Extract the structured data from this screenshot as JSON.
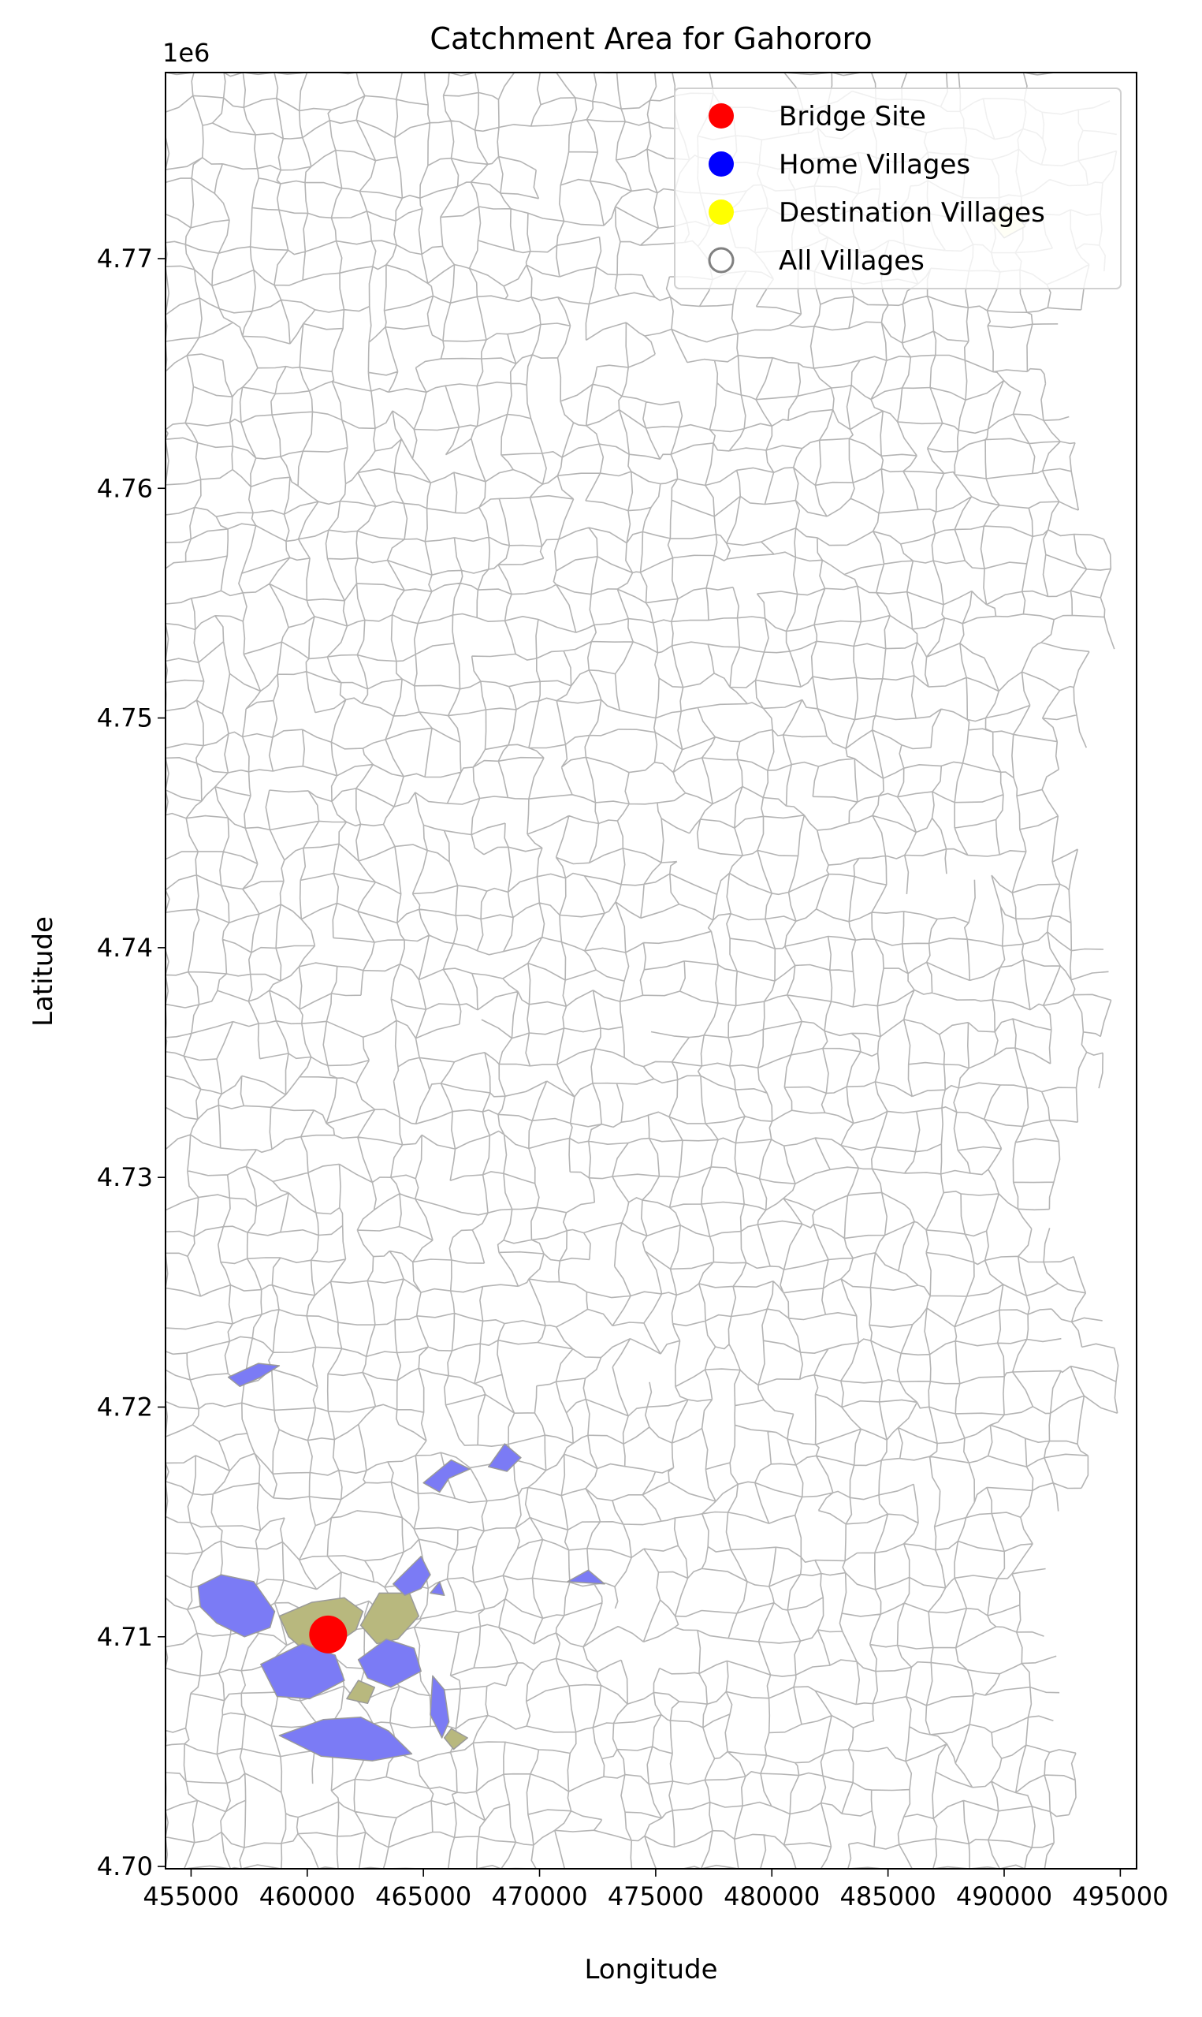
{
  "chart_data": {
    "type": "map",
    "title": "Catchment Area for Gahororo",
    "xlabel": "Longitude",
    "ylabel": "Latitude",
    "y_offset_label": "1e6",
    "xlim": [
      453900,
      495700
    ],
    "ylim": [
      4699900,
      4778100
    ],
    "x_ticks": [
      {
        "value": 455000,
        "label": "455000"
      },
      {
        "value": 460000,
        "label": "460000"
      },
      {
        "value": 465000,
        "label": "465000"
      },
      {
        "value": 470000,
        "label": "470000"
      },
      {
        "value": 475000,
        "label": "475000"
      },
      {
        "value": 480000,
        "label": "480000"
      },
      {
        "value": 485000,
        "label": "485000"
      },
      {
        "value": 490000,
        "label": "490000"
      },
      {
        "value": 495000,
        "label": "495000"
      }
    ],
    "y_ticks": [
      {
        "value": 4700000,
        "label": "4.70"
      },
      {
        "value": 4710000,
        "label": "4.71"
      },
      {
        "value": 4720000,
        "label": "4.72"
      },
      {
        "value": 4730000,
        "label": "4.73"
      },
      {
        "value": 4740000,
        "label": "4.74"
      },
      {
        "value": 4750000,
        "label": "4.75"
      },
      {
        "value": 4760000,
        "label": "4.76"
      },
      {
        "value": 4770000,
        "label": "4.77"
      }
    ],
    "legend": {
      "position": "top-right",
      "entries": [
        {
          "label": "Bridge Site",
          "marker": "filled-circle",
          "color": "#ff0000"
        },
        {
          "label": "Home Villages",
          "marker": "filled-circle",
          "color": "#0000ff"
        },
        {
          "label": "Destination Villages",
          "marker": "filled-circle",
          "color": "#ffff00"
        },
        {
          "label": "All Villages",
          "marker": "hollow-circle",
          "color": "#808080"
        }
      ]
    },
    "bridge_site": {
      "x": 460900,
      "y": 4710100,
      "color": "#ff0000"
    },
    "home_villages": [
      {
        "color": "#7b7bf5",
        "points": [
          [
            455300,
            4712200
          ],
          [
            456300,
            4712700
          ],
          [
            457700,
            4712400
          ],
          [
            458600,
            4711100
          ],
          [
            458400,
            4710400
          ],
          [
            457300,
            4710000
          ],
          [
            456100,
            4710600
          ],
          [
            455400,
            4711300
          ]
        ]
      },
      {
        "color": "#7b7bf5",
        "points": [
          [
            456600,
            4721300
          ],
          [
            457900,
            4721900
          ],
          [
            458800,
            4721800
          ],
          [
            458000,
            4721300
          ],
          [
            457100,
            4720900
          ]
        ]
      },
      {
        "color": "#7b7bf5",
        "points": [
          [
            463700,
            4712300
          ],
          [
            464900,
            4713500
          ],
          [
            465300,
            4712700
          ],
          [
            464900,
            4712100
          ],
          [
            464200,
            4711800
          ]
        ]
      },
      {
        "color": "#7b7bf5",
        "points": [
          [
            465300,
            4711900
          ],
          [
            465700,
            4712400
          ],
          [
            465900,
            4711800
          ]
        ]
      },
      {
        "color": "#7b7bf5",
        "points": [
          [
            465000,
            4716700
          ],
          [
            466200,
            4717700
          ],
          [
            467000,
            4717300
          ],
          [
            466100,
            4716900
          ],
          [
            465700,
            4716300
          ]
        ]
      },
      {
        "color": "#7b7bf5",
        "points": [
          [
            467800,
            4717400
          ],
          [
            468500,
            4718400
          ],
          [
            469200,
            4717800
          ],
          [
            468600,
            4717200
          ]
        ]
      },
      {
        "color": "#7b7bf5",
        "points": [
          [
            471200,
            4712400
          ],
          [
            472100,
            4712900
          ],
          [
            472800,
            4712300
          ]
        ]
      },
      {
        "color": "#7b7bf5",
        "points": [
          [
            458000,
            4708800
          ],
          [
            459800,
            4709700
          ],
          [
            461200,
            4709200
          ],
          [
            461600,
            4708100
          ],
          [
            460100,
            4707300
          ],
          [
            458700,
            4707400
          ]
        ]
      },
      {
        "color": "#7b7bf5",
        "points": [
          [
            462200,
            4709000
          ],
          [
            463400,
            4709900
          ],
          [
            464600,
            4709500
          ],
          [
            464900,
            4708500
          ],
          [
            463600,
            4707800
          ],
          [
            462600,
            4708200
          ]
        ]
      },
      {
        "color": "#7b7bf5",
        "points": [
          [
            458800,
            4705700
          ],
          [
            460700,
            4706400
          ],
          [
            462300,
            4706500
          ],
          [
            463500,
            4705900
          ],
          [
            464500,
            4704900
          ],
          [
            462800,
            4704600
          ],
          [
            460600,
            4704800
          ]
        ]
      },
      {
        "color": "#7b7bf5",
        "points": [
          [
            465400,
            4708300
          ],
          [
            465900,
            4707700
          ],
          [
            466100,
            4706300
          ],
          [
            465800,
            4705600
          ],
          [
            465300,
            4706600
          ]
        ]
      }
    ],
    "destination_villages": [
      {
        "color": "#b8b87e",
        "points": [
          [
            458800,
            4710900
          ],
          [
            460200,
            4711500
          ],
          [
            461600,
            4711700
          ],
          [
            462400,
            4711100
          ],
          [
            462100,
            4710300
          ],
          [
            461100,
            4709600
          ],
          [
            460000,
            4709300
          ],
          [
            459200,
            4710000
          ]
        ]
      },
      {
        "color": "#b8b87e",
        "points": [
          [
            462300,
            4710500
          ],
          [
            463100,
            4711900
          ],
          [
            464400,
            4711900
          ],
          [
            464800,
            4710900
          ],
          [
            463900,
            4709900
          ],
          [
            463000,
            4709700
          ]
        ]
      },
      {
        "color": "#b8b87e",
        "points": [
          [
            461700,
            4707300
          ],
          [
            462200,
            4708100
          ],
          [
            462900,
            4707800
          ],
          [
            462600,
            4707100
          ]
        ]
      },
      {
        "color": "#b8b87e",
        "points": [
          [
            465900,
            4705600
          ],
          [
            466300,
            4705100
          ],
          [
            466900,
            4705600
          ],
          [
            466200,
            4706000
          ]
        ]
      },
      {
        "color": "#ffffd0",
        "points": [
          [
            489200,
            4771900
          ],
          [
            490200,
            4772400
          ],
          [
            490900,
            4771400
          ],
          [
            490000,
            4770900
          ]
        ]
      }
    ]
  }
}
